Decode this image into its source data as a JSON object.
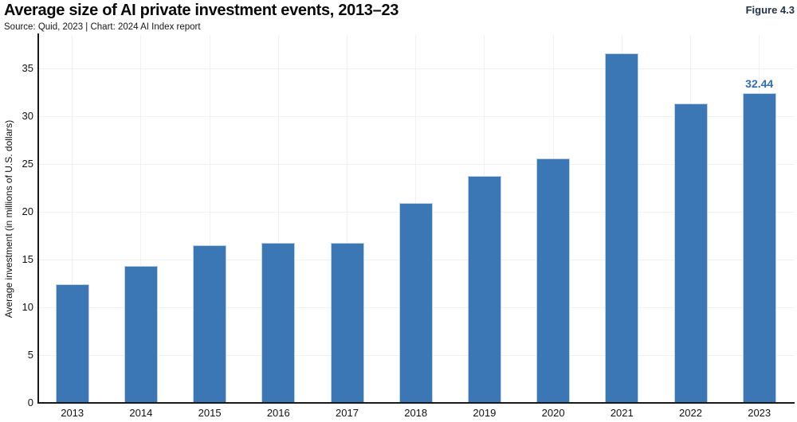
{
  "header": {
    "title": "Average size of AI private investment events, 2013–23",
    "source": "Source: Quid, 2023 | Chart: 2024 AI Index report",
    "figure_label": "Figure 4.3"
  },
  "chart_data": {
    "type": "bar",
    "title": "Average size of AI private investment events, 2013–23",
    "categories": [
      "2013",
      "2014",
      "2015",
      "2016",
      "2017",
      "2018",
      "2019",
      "2020",
      "2021",
      "2022",
      "2023"
    ],
    "values": [
      12.42,
      14.31,
      16.47,
      16.74,
      16.72,
      20.91,
      23.77,
      25.59,
      36.55,
      31.36,
      32.44
    ],
    "data_labels": [
      null,
      null,
      null,
      null,
      null,
      null,
      null,
      null,
      null,
      null,
      "32.44"
    ],
    "xlabel": "",
    "ylabel": "Average investment (in millions of U.S. dollars)",
    "ylim": [
      0,
      38.5
    ],
    "y_ticks": [
      0,
      5,
      10,
      15,
      20,
      25,
      30,
      35
    ],
    "grid": true,
    "legend": "none",
    "colors": {
      "bar_fill": "#3b76b5",
      "bar_border": "#bfd0e2",
      "value_label": "#2f6eb5",
      "figure_label": "#223349",
      "gridline": "#f1f1f1",
      "axis": "#1a1a1a"
    }
  }
}
